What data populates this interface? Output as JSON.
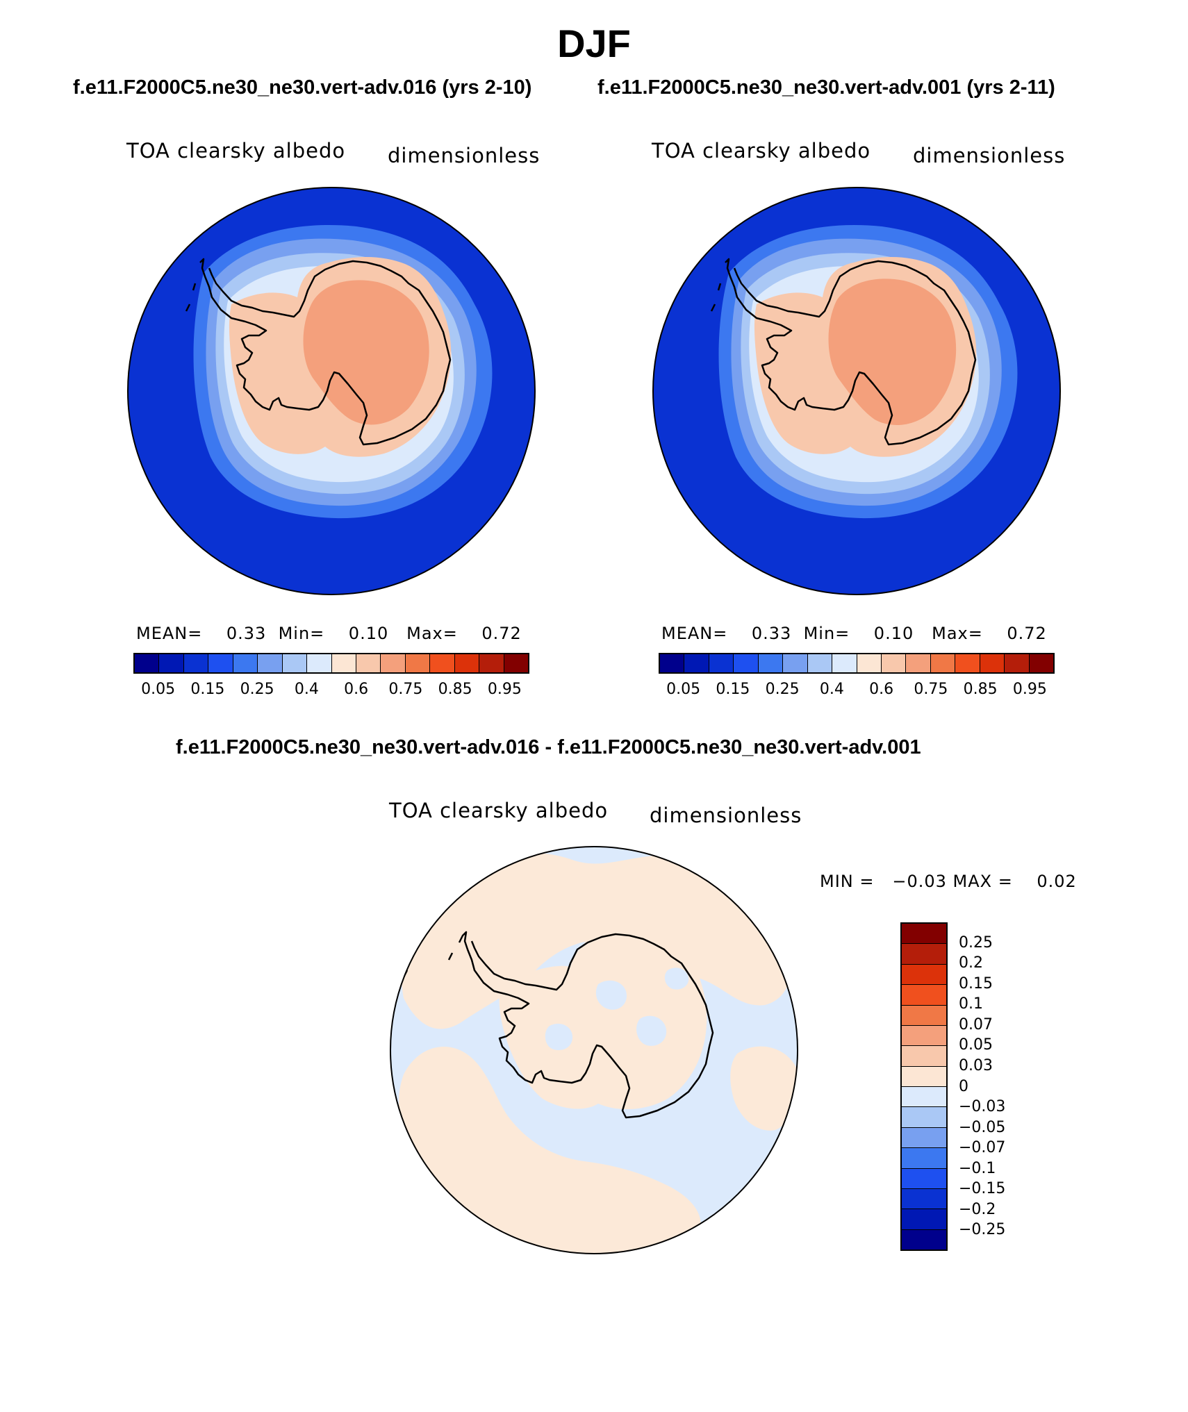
{
  "figure": {
    "title": "DJF",
    "case_title_left": "f.e11.F2000C5.ne30_ne30.vert-adv.016 (yrs 2-10)",
    "case_title_right": "f.e11.F2000C5.ne30_ne30.vert-adv.001 (yrs 2-11)",
    "diff_title": "f.e11.F2000C5.ne30_ne30.vert-adv.016 - f.e11.F2000C5.ne30_ne30.vert-adv.001"
  },
  "panel_left": {
    "variable": "TOA clearsky albedo",
    "units": "dimensionless",
    "stats": {
      "mean_label": "MEAN=",
      "mean": "0.33",
      "min_label": "Min=",
      "min": "0.10",
      "max_label": "Max=",
      "max": "0.72"
    }
  },
  "panel_right": {
    "variable": "TOA clearsky albedo",
    "units": "dimensionless",
    "stats": {
      "mean_label": "MEAN=",
      "mean": "0.33",
      "min_label": "Min=",
      "min": "0.10",
      "max_label": "Max=",
      "max": "0.72"
    }
  },
  "panel_diff": {
    "variable": "TOA clearsky albedo",
    "units": "dimensionless",
    "minmax_text": "MIN =   −0.03 MAX =    0.02"
  },
  "colorbar_main": {
    "colors": [
      "#00008c",
      "#0018b4",
      "#0a32d2",
      "#1e50f0",
      "#3c78f0",
      "#78a0f0",
      "#aac8f5",
      "#dceafc",
      "#fce6d4",
      "#f8c8ac",
      "#f4a07c",
      "#f07846",
      "#f0501e",
      "#dc320a",
      "#b41e0a",
      "#820000"
    ],
    "labels": [
      "0.05",
      "0.15",
      "0.25",
      "0.4",
      "0.6",
      "0.75",
      "0.85",
      "0.95"
    ],
    "label_boundaries": [
      1,
      3,
      5,
      7,
      9,
      11,
      13,
      15
    ]
  },
  "colorbar_diff": {
    "colors": [
      "#00008c",
      "#0018b4",
      "#0a32d2",
      "#1e50f0",
      "#3c78f0",
      "#78a0f0",
      "#aac8f5",
      "#dceafc",
      "#fce6d4",
      "#f8c8ac",
      "#f4a07c",
      "#f07846",
      "#f0501e",
      "#dc320a",
      "#b41e0a",
      "#820000"
    ],
    "labels": [
      "−0.25",
      "−0.2",
      "−0.15",
      "−0.1",
      "−0.07",
      "−0.05",
      "−0.03",
      "0",
      "0.03",
      "0.05",
      "0.07",
      "0.1",
      "0.15",
      "0.2",
      "0.25"
    ]
  },
  "map_fields": {
    "ocean_far": "#0a32d2",
    "ice_ring_1": "#3c78f0",
    "ice_ring_2": "#78a0f0",
    "ice_ring_3": "#aac8f5",
    "ice_ring_4": "#dceafc",
    "continent": "#f8c8ac",
    "plateau": "#f4a07c",
    "diff_positive": "#fce9d8",
    "diff_negative": "#dceafc"
  }
}
